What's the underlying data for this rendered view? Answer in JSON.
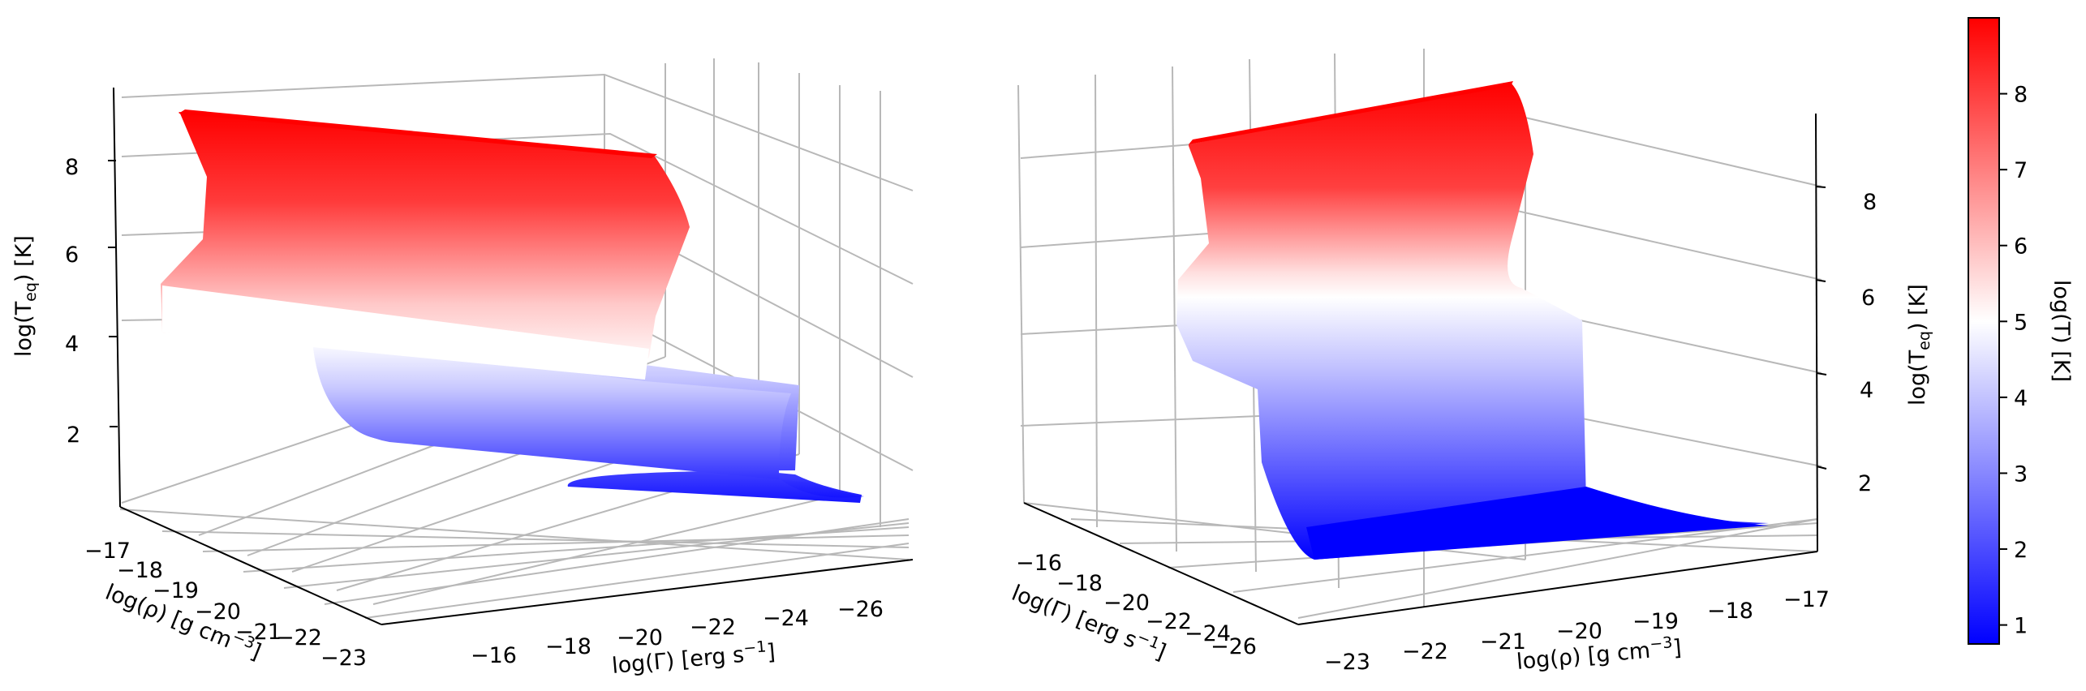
{
  "colormap": {
    "low": "#0000ff",
    "mid": "#ffffff",
    "high": "#ff0000"
  },
  "chart_data": [
    {
      "type": "surface3d",
      "name": "left-panel",
      "xlabel": "log(ρ) [g cm",
      "xlabel_sup": "−3",
      "xlabel_end": "]",
      "ylabel": "log(Γ) [erg s",
      "ylabel_sup": "−1",
      "ylabel_end": "]",
      "zlabel": "log(T",
      "zlabel_sub": "eq",
      "zlabel_end": ") [K]",
      "x_ticks": [
        "−17",
        "−18",
        "−19",
        "−20",
        "−21",
        "−22",
        "−23"
      ],
      "y_ticks": [
        "−16",
        "−18",
        "−20",
        "−22",
        "−24",
        "−26"
      ],
      "z_ticks": [
        "2",
        "4",
        "6",
        "8"
      ],
      "x_range": [
        -23,
        -17
      ],
      "y_range": [
        -27,
        -15
      ],
      "z_range": [
        1,
        9
      ]
    },
    {
      "type": "surface3d",
      "name": "right-panel",
      "xlabel": "log(Γ) [erg s",
      "xlabel_sup": "−1",
      "xlabel_end": "]",
      "ylabel": "log(ρ) [g cm",
      "ylabel_sup": "−3",
      "ylabel_end": "]",
      "zlabel": "log(T",
      "zlabel_sub": "eq",
      "zlabel_end": ") [K]",
      "x_ticks": [
        "−16",
        "−18",
        "−20",
        "−22",
        "−24",
        "−26"
      ],
      "y_ticks": [
        "−23",
        "−22",
        "−21",
        "−20",
        "−19",
        "−18",
        "−17"
      ],
      "z_ticks": [
        "2",
        "4",
        "6",
        "8"
      ],
      "x_range": [
        -27,
        -15
      ],
      "y_range": [
        -23,
        -17
      ],
      "z_range": [
        1,
        9
      ]
    }
  ],
  "colorbar": {
    "label": "log(T) [K]",
    "ticks": [
      "1",
      "2",
      "3",
      "4",
      "5",
      "6",
      "7",
      "8"
    ],
    "range": [
      0.75,
      9
    ]
  }
}
